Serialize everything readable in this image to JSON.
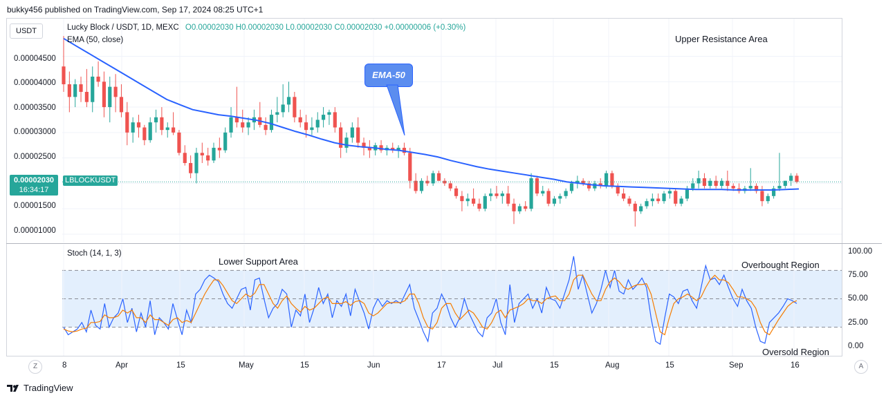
{
  "header": {
    "published_text": "bukky456 published on TradingView.com, Sep 17, 2024 08:25 UTC+1"
  },
  "currency_button": "USDT",
  "legend": {
    "symbol": "Lucky Block / USDT, 1D, MEXC",
    "ohlc": "O0.00002030 H0.00002030 L0.00002030 C0.00002030 +0.00000006 (+0.30%)",
    "ema": "EMA (50, close)"
  },
  "price_axis": [
    "0.00004500",
    "0.00004000",
    "0.00003500",
    "0.00003000",
    "0.00002500",
    "0.00001500",
    "0.00001000"
  ],
  "price_tag": {
    "price": "0.00002030",
    "countdown": "16:34:17",
    "ticker": "LBLOCKUSDT"
  },
  "stoch": {
    "label": "Stoch (14, 1, 3)",
    "axis": [
      "100.00",
      "75.00",
      "50.00",
      "25.00",
      "0.00"
    ]
  },
  "annotations": {
    "upper_resistance": "Upper Resistance Area",
    "lower_support": "Lower Support Area",
    "overbought": "Overbought Region",
    "oversold": "Oversold Region",
    "ema_callout": "EMA-50"
  },
  "time_axis": [
    "8",
    "Apr",
    "15",
    "May",
    "15",
    "Jun",
    "17",
    "Jul",
    "15",
    "Aug",
    "15",
    "Sep",
    "16"
  ],
  "corner_buttons": {
    "left": "Z",
    "right": "A"
  },
  "footer": {
    "brand": "TradingView"
  },
  "colors": {
    "up": "#26a69a",
    "down": "#ef5350",
    "ema": "#2962ff",
    "stoch_k": "#2962ff",
    "stoch_d": "#f57c00",
    "band": "#e3effd"
  },
  "chart_data": [
    {
      "type": "candlestick",
      "title": "Lucky Block / USDT, 1D, MEXC",
      "ylim": [
        8.5e-06,
        5.2e-05
      ],
      "x_start": "Mar 8",
      "x_end": "Sep 17",
      "last_price": 2.03e-05,
      "candles": [
        [
          4.3,
          4.9,
          3.8,
          3.95
        ],
        [
          3.95,
          4.2,
          3.4,
          3.7
        ],
        [
          3.7,
          4.05,
          3.5,
          3.95
        ],
        [
          3.95,
          4.1,
          3.6,
          3.8
        ],
        [
          3.8,
          4.25,
          3.5,
          3.6
        ],
        [
          3.6,
          4.3,
          3.4,
          4.1
        ],
        [
          4.1,
          4.4,
          3.9,
          4.0
        ],
        [
          4.0,
          4.2,
          3.3,
          3.5
        ],
        [
          3.5,
          4.1,
          3.2,
          3.9
        ],
        [
          3.9,
          4.15,
          3.4,
          3.7
        ],
        [
          3.7,
          3.95,
          3.3,
          3.4
        ],
        [
          3.4,
          3.6,
          2.75,
          3.0
        ],
        [
          3.0,
          3.3,
          2.8,
          3.2
        ],
        [
          3.2,
          3.35,
          2.9,
          3.1
        ],
        [
          3.1,
          3.15,
          2.75,
          2.85
        ],
        [
          2.85,
          3.3,
          2.8,
          3.2
        ],
        [
          3.2,
          3.45,
          3.0,
          3.3
        ],
        [
          3.3,
          3.5,
          2.95,
          3.05
        ],
        [
          3.05,
          3.2,
          2.9,
          3.1
        ],
        [
          3.1,
          3.4,
          2.95,
          3.0
        ],
        [
          3.0,
          3.05,
          2.55,
          2.6
        ],
        [
          2.6,
          2.75,
          2.35,
          2.4
        ],
        [
          2.4,
          2.55,
          2.1,
          2.2
        ],
        [
          2.2,
          2.7,
          2.0,
          2.6
        ],
        [
          2.6,
          2.8,
          2.4,
          2.55
        ],
        [
          2.55,
          2.7,
          2.35,
          2.45
        ],
        [
          2.45,
          2.8,
          2.4,
          2.7
        ],
        [
          2.7,
          2.9,
          2.5,
          2.65
        ],
        [
          2.65,
          3.1,
          2.6,
          3.0
        ],
        [
          3.0,
          3.5,
          2.9,
          3.3
        ],
        [
          3.3,
          3.9,
          3.1,
          3.2
        ],
        [
          3.2,
          3.45,
          3.0,
          3.1
        ],
        [
          3.1,
          3.3,
          2.95,
          3.2
        ],
        [
          3.2,
          3.45,
          3.05,
          3.3
        ],
        [
          3.3,
          3.6,
          3.1,
          3.15
        ],
        [
          3.15,
          3.3,
          2.95,
          3.05
        ],
        [
          3.05,
          3.45,
          3.0,
          3.35
        ],
        [
          3.35,
          3.7,
          3.2,
          3.4
        ],
        [
          3.4,
          3.95,
          3.3,
          3.55
        ],
        [
          3.55,
          4.0,
          3.4,
          3.7
        ],
        [
          3.7,
          3.8,
          3.2,
          3.3
        ],
        [
          3.3,
          3.45,
          3.1,
          3.2
        ],
        [
          3.2,
          3.35,
          2.9,
          3.05
        ],
        [
          3.05,
          3.3,
          2.95,
          3.1
        ],
        [
          3.1,
          3.4,
          3.0,
          3.25
        ],
        [
          3.25,
          3.5,
          3.1,
          3.35
        ],
        [
          3.35,
          3.45,
          3.15,
          3.4
        ],
        [
          3.4,
          3.5,
          3.0,
          3.1
        ],
        [
          3.1,
          3.2,
          2.5,
          2.7
        ],
        [
          2.7,
          3.0,
          2.6,
          2.9
        ],
        [
          2.9,
          3.2,
          2.8,
          3.1
        ],
        [
          3.1,
          3.3,
          2.7,
          2.8
        ],
        [
          2.8,
          2.9,
          2.55,
          2.7
        ],
        [
          2.7,
          2.85,
          2.5,
          2.65
        ],
        [
          2.65,
          2.8,
          2.55,
          2.75
        ],
        [
          2.75,
          2.85,
          2.6,
          2.65
        ],
        [
          2.65,
          2.75,
          2.55,
          2.7
        ],
        [
          2.7,
          2.8,
          2.6,
          2.65
        ],
        [
          2.65,
          2.75,
          2.5,
          2.7
        ],
        [
          2.7,
          2.8,
          2.55,
          2.6
        ],
        [
          2.6,
          2.7,
          1.9,
          2.05
        ],
        [
          2.05,
          2.2,
          1.8,
          1.85
        ],
        [
          1.85,
          2.1,
          1.8,
          2.05
        ],
        [
          2.05,
          2.15,
          1.95,
          2.0
        ],
        [
          2.0,
          2.25,
          1.95,
          2.2
        ],
        [
          2.2,
          2.25,
          2.05,
          2.05
        ],
        [
          2.05,
          2.1,
          1.95,
          2.0
        ],
        [
          2.0,
          2.05,
          1.85,
          1.9
        ],
        [
          1.9,
          1.95,
          1.7,
          1.75
        ],
        [
          1.75,
          1.85,
          1.45,
          1.65
        ],
        [
          1.65,
          1.8,
          1.55,
          1.7
        ],
        [
          1.7,
          1.9,
          1.55,
          1.6
        ],
        [
          1.6,
          1.7,
          1.45,
          1.5
        ],
        [
          1.5,
          1.8,
          1.45,
          1.75
        ],
        [
          1.75,
          1.9,
          1.65,
          1.8
        ],
        [
          1.8,
          1.95,
          1.7,
          1.75
        ],
        [
          1.75,
          1.85,
          1.6,
          1.8
        ],
        [
          1.8,
          1.95,
          1.55,
          1.6
        ],
        [
          1.6,
          1.7,
          1.2,
          1.45
        ],
        [
          1.45,
          1.6,
          1.4,
          1.55
        ],
        [
          1.55,
          1.65,
          1.45,
          1.5
        ],
        [
          1.5,
          2.2,
          1.45,
          2.1
        ],
        [
          2.1,
          2.15,
          1.75,
          1.8
        ],
        [
          1.8,
          1.95,
          1.75,
          1.85
        ],
        [
          1.85,
          1.9,
          1.55,
          1.6
        ],
        [
          1.6,
          1.75,
          1.55,
          1.7
        ],
        [
          1.7,
          1.8,
          1.6,
          1.75
        ],
        [
          1.75,
          1.9,
          1.7,
          1.85
        ],
        [
          1.85,
          2.05,
          1.8,
          2.0
        ],
        [
          2.0,
          2.15,
          1.9,
          2.05
        ],
        [
          2.05,
          2.1,
          1.95,
          2.0
        ],
        [
          2.0,
          2.05,
          1.85,
          1.9
        ],
        [
          1.9,
          2.05,
          1.85,
          2.0
        ],
        [
          2.0,
          2.1,
          1.9,
          1.95
        ],
        [
          1.95,
          2.25,
          1.9,
          2.2
        ],
        [
          2.2,
          2.25,
          1.9,
          1.95
        ],
        [
          1.95,
          2.0,
          1.75,
          1.8
        ],
        [
          1.8,
          1.9,
          1.65,
          1.7
        ],
        [
          1.7,
          1.75,
          1.55,
          1.6
        ],
        [
          1.6,
          1.65,
          1.15,
          1.45
        ],
        [
          1.45,
          1.6,
          1.4,
          1.55
        ],
        [
          1.55,
          1.7,
          1.5,
          1.65
        ],
        [
          1.65,
          1.8,
          1.55,
          1.7
        ],
        [
          1.7,
          1.8,
          1.6,
          1.65
        ],
        [
          1.65,
          1.85,
          1.6,
          1.8
        ],
        [
          1.8,
          1.9,
          1.7,
          1.85
        ],
        [
          1.85,
          1.9,
          1.55,
          1.6
        ],
        [
          1.6,
          1.75,
          1.55,
          1.7
        ],
        [
          1.7,
          1.95,
          1.65,
          1.9
        ],
        [
          1.9,
          2.1,
          1.85,
          2.0
        ],
        [
          2.0,
          2.25,
          1.9,
          2.1
        ],
        [
          2.1,
          2.2,
          1.9,
          1.95
        ],
        [
          1.95,
          2.1,
          1.9,
          2.05
        ],
        [
          2.05,
          2.15,
          1.9,
          1.95
        ],
        [
          1.95,
          2.1,
          1.9,
          2.05
        ],
        [
          2.05,
          2.25,
          1.85,
          1.95
        ],
        [
          1.95,
          2.0,
          1.85,
          1.9
        ],
        [
          1.9,
          2.0,
          1.8,
          1.85
        ],
        [
          1.85,
          1.95,
          1.8,
          1.9
        ],
        [
          1.9,
          2.3,
          1.85,
          1.95
        ],
        [
          1.95,
          2.0,
          1.8,
          1.85
        ],
        [
          1.85,
          1.95,
          1.55,
          1.65
        ],
        [
          1.65,
          1.8,
          1.6,
          1.75
        ],
        [
          1.75,
          1.95,
          1.7,
          1.9
        ],
        [
          1.9,
          2.6,
          1.85,
          1.95
        ],
        [
          1.95,
          2.05,
          1.9,
          2.05
        ],
        [
          2.05,
          2.2,
          1.95,
          2.15
        ],
        [
          2.15,
          2.2,
          2.0,
          2.03
        ]
      ],
      "ema50": [
        4.85,
        4.7,
        4.55,
        4.4,
        4.25,
        4.1,
        3.95,
        3.8,
        3.65,
        3.55,
        3.45,
        3.4,
        3.35,
        3.32,
        3.28,
        3.24,
        3.18,
        3.1,
        3.02,
        2.95,
        2.87,
        2.8,
        2.75,
        2.72,
        2.7,
        2.67,
        2.65,
        2.61,
        2.57,
        2.52,
        2.45,
        2.39,
        2.33,
        2.28,
        2.24,
        2.2,
        2.16,
        2.12,
        2.08,
        2.03,
        2.0,
        1.97,
        1.95,
        1.94,
        1.93,
        1.92,
        1.91,
        1.9,
        1.89,
        1.88,
        1.88,
        1.88,
        1.87,
        1.87,
        1.87,
        1.87,
        1.88,
        1.89
      ],
      "price_scale_note": "values in units of 1e-5 USDT"
    },
    {
      "type": "line",
      "title": "Stoch (14, 1, 3)",
      "ylim": [
        0,
        100
      ],
      "reference_lines": [
        80,
        50,
        20
      ],
      "series": [
        {
          "name": "K",
          "values": [
            20,
            12,
            15,
            18,
            25,
            15,
            38,
            22,
            18,
            45,
            20,
            30,
            35,
            50,
            25,
            40,
            15,
            35,
            20,
            48,
            12,
            30,
            25,
            18,
            45,
            28,
            12,
            38,
            25,
            55,
            60,
            70,
            75,
            72,
            68,
            55,
            45,
            40,
            50,
            60,
            62,
            38,
            70,
            72,
            50,
            30,
            40,
            45,
            60,
            55,
            20,
            38,
            32,
            55,
            25,
            40,
            62,
            45,
            55,
            30,
            48,
            42,
            55,
            32,
            60,
            47,
            35,
            18,
            40,
            50,
            42,
            48,
            45,
            48,
            45,
            55,
            65,
            40,
            28,
            15,
            5,
            35,
            40,
            55,
            45,
            30,
            20,
            30,
            50,
            35,
            25,
            15,
            10,
            30,
            35,
            50,
            25,
            12,
            65,
            25,
            45,
            50,
            55,
            40,
            50,
            35,
            62,
            50,
            48,
            40,
            55,
            70,
            95,
            60,
            75,
            55,
            35,
            45,
            60,
            80,
            62,
            80,
            58,
            55,
            70,
            60,
            65,
            72,
            62,
            30,
            5,
            2,
            30,
            55,
            52,
            45,
            58,
            60,
            48,
            40,
            62,
            85,
            70,
            72,
            65,
            75,
            62,
            50,
            42,
            60,
            48,
            40,
            20,
            5,
            3,
            25,
            30,
            35,
            42,
            50,
            48,
            45
          ]
        },
        {
          "name": "D",
          "values": [
            18,
            16,
            15,
            16,
            18,
            19,
            25,
            25,
            26,
            33,
            30,
            30,
            32,
            38,
            35,
            38,
            30,
            30,
            25,
            33,
            28,
            28,
            25,
            22,
            28,
            30,
            25,
            27,
            25,
            35,
            45,
            55,
            63,
            70,
            70,
            64,
            56,
            48,
            45,
            50,
            55,
            52,
            56,
            65,
            65,
            55,
            45,
            40,
            48,
            53,
            45,
            40,
            36,
            42,
            38,
            40,
            45,
            50,
            52,
            45,
            45,
            45,
            47,
            43,
            47,
            48,
            45,
            35,
            32,
            35,
            40,
            45,
            46,
            46,
            46,
            48,
            55,
            55,
            45,
            30,
            20,
            18,
            25,
            40,
            45,
            45,
            35,
            28,
            33,
            38,
            35,
            28,
            20,
            18,
            25,
            35,
            38,
            30,
            38,
            40,
            42,
            45,
            50,
            48,
            48,
            45,
            50,
            52,
            53,
            48,
            48,
            55,
            70,
            75,
            75,
            65,
            55,
            48,
            48,
            60,
            68,
            72,
            68,
            62,
            60,
            63,
            65,
            65,
            66,
            55,
            35,
            15,
            12,
            30,
            45,
            50,
            52,
            55,
            52,
            48,
            52,
            62,
            70,
            75,
            70,
            70,
            67,
            60,
            52,
            52,
            50,
            47,
            40,
            25,
            15,
            12,
            20,
            28,
            35,
            42,
            46,
            48
          ]
        }
      ]
    }
  ]
}
